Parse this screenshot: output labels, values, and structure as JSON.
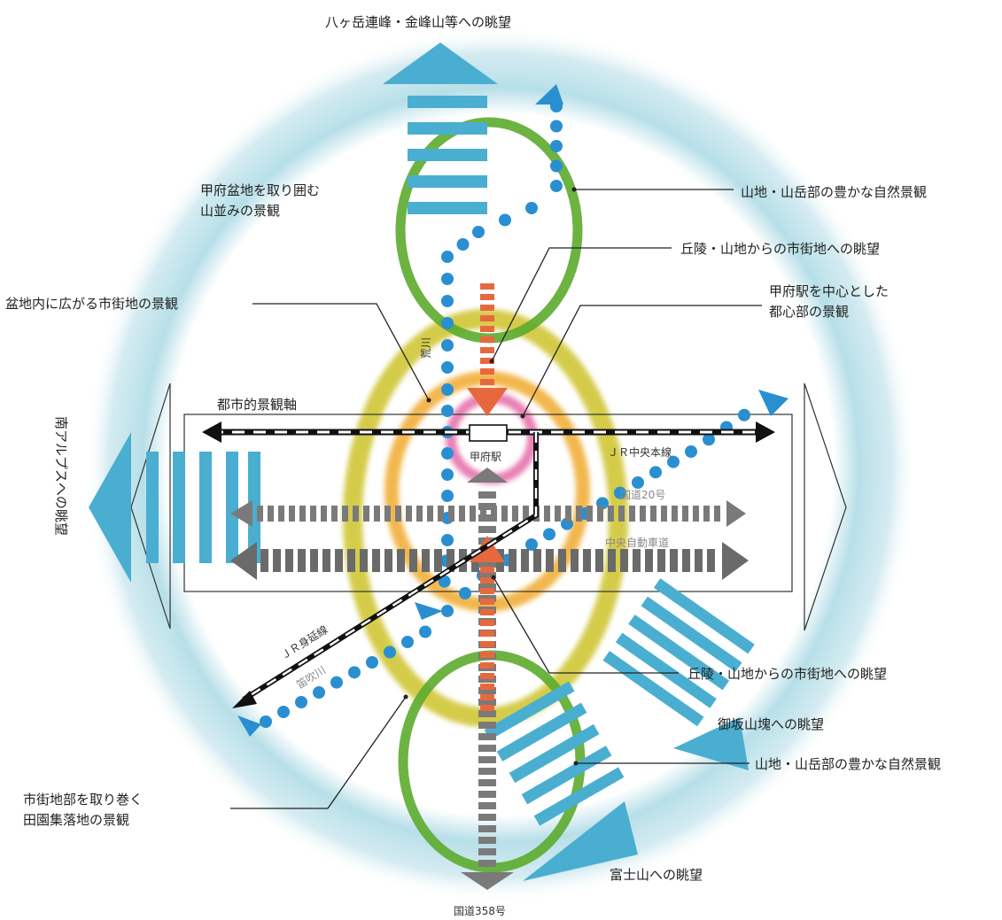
{
  "labels": {
    "top_view": "八ヶ岳連峰・金峰山等への眺望",
    "basin_mountains_line1": "甲府盆地を取り囲む",
    "basin_mountains_line2": "山並みの景観",
    "nature_upper": "山地・山岳部の豊かな自然景観",
    "hill_view_upper": "丘陵・山地からの市街地への眺望",
    "city_in_basin": "盆地内に広がる市街地の景観",
    "station_center_line1": "甲府駅を中心とした",
    "station_center_line2": "都心部の景観",
    "urban_axis": "都市的景観軸",
    "south_alps": "南アルプスへの眺望",
    "station": "甲府駅",
    "jr_chuo": "ＪＲ中央本線",
    "route20": "国道20号",
    "expressway": "中央自動車道",
    "arakawa": "荒川",
    "jr_minobu": "ＪＲ身延線",
    "fuefuki": "笛吹川",
    "hill_view_lower": "丘陵・山地からの市街地への眺望",
    "misaka_view": "御坂山塊への眺望",
    "nature_lower": "山地・山岳部の豊かな自然景観",
    "rural_line1": "市街地部を取り巻く",
    "rural_line2": "田園集落地の景観",
    "fuji_view": "富士山への眺望",
    "route358": "国道358号"
  },
  "colors": {
    "halo": "#7cc5d6",
    "view_arrow": "#4aaed1",
    "river_dots": "#2a8fd0",
    "mountain_ring": "#5cab2e",
    "city_ring": "#cdc22a",
    "center_ring": "#f0aa2e",
    "station_ring": "#e56ba8",
    "hill_arrow": "#e8683e",
    "road_gray": "#7a7a7a",
    "rail_black": "#111111"
  },
  "icons": {
    "station": "station-box-icon",
    "view_arrow": "view-arrow-icon",
    "river": "river-dots-icon"
  }
}
